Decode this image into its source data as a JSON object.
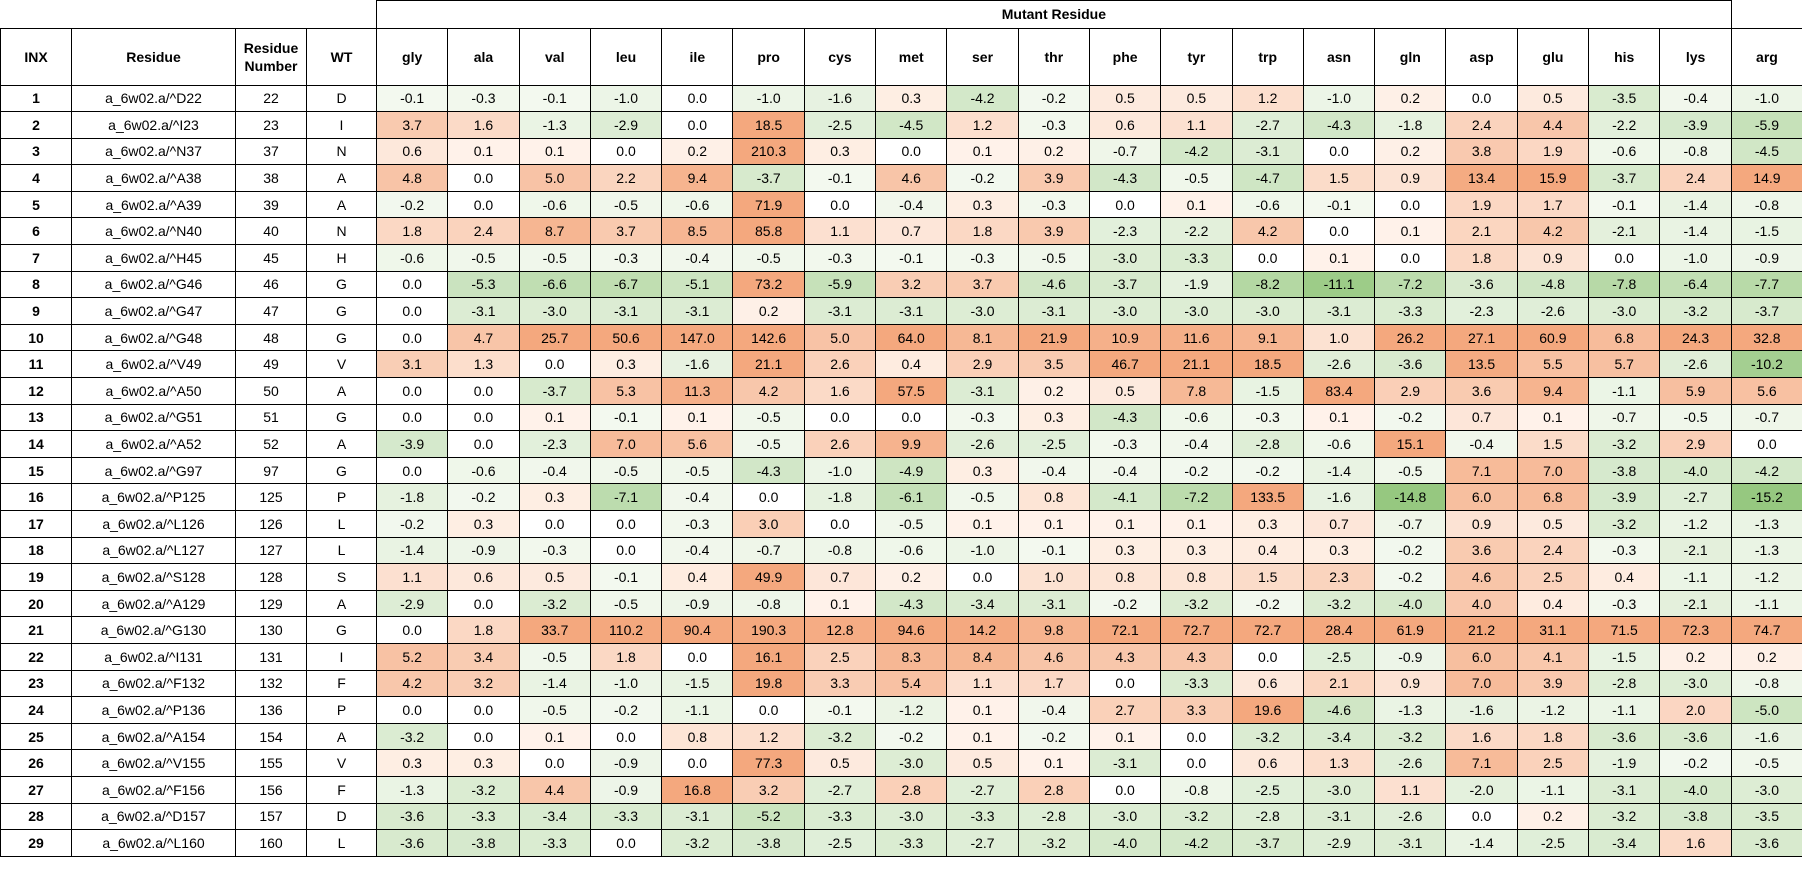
{
  "title": "Mutant Residue",
  "headers": [
    "INX",
    "Residue",
    "Residue Number",
    "WT",
    "gly",
    "ala",
    "val",
    "leu",
    "ile",
    "pro",
    "cys",
    "met",
    "ser",
    "thr",
    "phe",
    "tyr",
    "trp",
    "asn",
    "gln",
    "asp",
    "glu",
    "his",
    "lys",
    "arg"
  ],
  "colors": {
    "positive": "#f4a77d",
    "negative": "#8fc77a",
    "neutral": "#f4f9f0"
  },
  "rows": [
    [
      "1",
      "a_6w02.a/^D22",
      "22",
      "D",
      "-0.1",
      "-0.3",
      "-0.1",
      "-1.0",
      "0.0",
      "-1.0",
      "-1.6",
      "0.3",
      "-4.2",
      "-0.2",
      "0.5",
      "0.5",
      "1.2",
      "-1.0",
      "0.2",
      "0.0",
      "0.5",
      "-3.5",
      "-0.4",
      "-1.0"
    ],
    [
      "2",
      "a_6w02.a/^I23",
      "23",
      "I",
      "3.7",
      "1.6",
      "-1.3",
      "-2.9",
      "0.0",
      "18.5",
      "-2.5",
      "-4.5",
      "1.2",
      "-0.3",
      "0.6",
      "1.1",
      "-2.7",
      "-4.3",
      "-1.8",
      "2.4",
      "4.4",
      "-2.2",
      "-3.9",
      "-5.9"
    ],
    [
      "3",
      "a_6w02.a/^N37",
      "37",
      "N",
      "0.6",
      "0.1",
      "0.1",
      "0.0",
      "0.2",
      "210.3",
      "0.3",
      "0.0",
      "0.1",
      "0.2",
      "-0.7",
      "-4.2",
      "-3.1",
      "0.0",
      "0.2",
      "3.8",
      "1.9",
      "-0.6",
      "-0.8",
      "-4.5"
    ],
    [
      "4",
      "a_6w02.a/^A38",
      "38",
      "A",
      "4.8",
      "0.0",
      "5.0",
      "2.2",
      "9.4",
      "-3.7",
      "-0.1",
      "4.6",
      "-0.2",
      "3.9",
      "-4.3",
      "-0.5",
      "-4.7",
      "1.5",
      "0.9",
      "13.4",
      "15.9",
      "-3.7",
      "2.4",
      "14.9"
    ],
    [
      "5",
      "a_6w02.a/^A39",
      "39",
      "A",
      "-0.2",
      "0.0",
      "-0.6",
      "-0.5",
      "-0.6",
      "71.9",
      "0.0",
      "-0.4",
      "0.3",
      "-0.3",
      "0.0",
      "0.1",
      "-0.6",
      "-0.1",
      "0.0",
      "1.9",
      "1.7",
      "-0.1",
      "-1.4",
      "-0.8"
    ],
    [
      "6",
      "a_6w02.a/^N40",
      "40",
      "N",
      "1.8",
      "2.4",
      "8.7",
      "3.7",
      "8.5",
      "85.8",
      "1.1",
      "0.7",
      "1.8",
      "3.9",
      "-2.3",
      "-2.2",
      "4.2",
      "0.0",
      "0.1",
      "2.1",
      "4.2",
      "-2.1",
      "-1.4",
      "-1.5"
    ],
    [
      "7",
      "a_6w02.a/^H45",
      "45",
      "H",
      "-0.6",
      "-0.5",
      "-0.5",
      "-0.3",
      "-0.4",
      "-0.5",
      "-0.3",
      "-0.1",
      "-0.3",
      "-0.5",
      "-3.0",
      "-3.3",
      "0.0",
      "0.1",
      "0.0",
      "1.8",
      "0.9",
      "0.0",
      "-1.0",
      "-0.9"
    ],
    [
      "8",
      "a_6w02.a/^G46",
      "46",
      "G",
      "0.0",
      "-5.3",
      "-6.6",
      "-6.7",
      "-5.1",
      "73.2",
      "-5.9",
      "3.2",
      "3.7",
      "-4.6",
      "-3.7",
      "-1.9",
      "-8.2",
      "-11.1",
      "-7.2",
      "-3.6",
      "-4.8",
      "-7.8",
      "-6.4",
      "-7.7"
    ],
    [
      "9",
      "a_6w02.a/^G47",
      "47",
      "G",
      "0.0",
      "-3.1",
      "-3.0",
      "-3.1",
      "-3.1",
      "0.2",
      "-3.1",
      "-3.1",
      "-3.0",
      "-3.1",
      "-3.0",
      "-3.0",
      "-3.0",
      "-3.1",
      "-3.3",
      "-2.3",
      "-2.6",
      "-3.0",
      "-3.2",
      "-3.7"
    ],
    [
      "10",
      "a_6w02.a/^G48",
      "48",
      "G",
      "0.0",
      "4.7",
      "25.7",
      "50.6",
      "147.0",
      "142.6",
      "5.0",
      "64.0",
      "8.1",
      "21.9",
      "10.9",
      "11.6",
      "9.1",
      "1.0",
      "26.2",
      "27.1",
      "60.9",
      "6.8",
      "24.3",
      "32.8"
    ],
    [
      "11",
      "a_6w02.a/^V49",
      "49",
      "V",
      "3.1",
      "1.3",
      "0.0",
      "0.3",
      "-1.6",
      "21.1",
      "2.6",
      "0.4",
      "2.9",
      "3.5",
      "46.7",
      "21.1",
      "18.5",
      "-2.6",
      "-3.6",
      "13.5",
      "5.5",
      "5.7",
      "-2.6",
      "-10.2"
    ],
    [
      "12",
      "a_6w02.a/^A50",
      "50",
      "A",
      "0.0",
      "0.0",
      "-3.7",
      "5.3",
      "11.3",
      "4.2",
      "1.6",
      "57.5",
      "-3.1",
      "0.2",
      "0.5",
      "7.8",
      "-1.5",
      "83.4",
      "2.9",
      "3.6",
      "9.4",
      "-1.1",
      "5.9",
      "5.6"
    ],
    [
      "13",
      "a_6w02.a/^G51",
      "51",
      "G",
      "0.0",
      "0.0",
      "0.1",
      "-0.1",
      "0.1",
      "-0.5",
      "0.0",
      "0.0",
      "-0.3",
      "0.3",
      "-4.3",
      "-0.6",
      "-0.3",
      "0.1",
      "-0.2",
      "0.7",
      "0.1",
      "-0.7",
      "-0.5",
      "-0.7"
    ],
    [
      "14",
      "a_6w02.a/^A52",
      "52",
      "A",
      "-3.9",
      "0.0",
      "-2.3",
      "7.0",
      "5.6",
      "-0.5",
      "2.6",
      "9.9",
      "-2.6",
      "-2.5",
      "-0.3",
      "-0.4",
      "-2.8",
      "-0.6",
      "15.1",
      "-0.4",
      "1.5",
      "-3.2",
      "2.9",
      "0.0"
    ],
    [
      "15",
      "a_6w02.a/^G97",
      "97",
      "G",
      "0.0",
      "-0.6",
      "-0.4",
      "-0.5",
      "-0.5",
      "-4.3",
      "-1.0",
      "-4.9",
      "0.3",
      "-0.4",
      "-0.4",
      "-0.2",
      "-0.2",
      "-1.4",
      "-0.5",
      "7.1",
      "7.0",
      "-3.8",
      "-4.0",
      "-4.2"
    ],
    [
      "16",
      "a_6w02.a/^P125",
      "125",
      "P",
      "-1.8",
      "-0.2",
      "0.3",
      "-7.1",
      "-0.4",
      "0.0",
      "-1.8",
      "-6.1",
      "-0.5",
      "0.8",
      "-4.1",
      "-7.2",
      "133.5",
      "-1.6",
      "-14.8",
      "6.0",
      "6.8",
      "-3.9",
      "-2.7",
      "-15.2"
    ],
    [
      "17",
      "a_6w02.a/^L126",
      "126",
      "L",
      "-0.2",
      "0.3",
      "0.0",
      "0.0",
      "-0.3",
      "3.0",
      "0.0",
      "-0.5",
      "0.1",
      "0.1",
      "0.1",
      "0.1",
      "0.3",
      "0.7",
      "-0.7",
      "0.9",
      "0.5",
      "-3.2",
      "-1.2",
      "-1.3"
    ],
    [
      "18",
      "a_6w02.a/^L127",
      "127",
      "L",
      "-1.4",
      "-0.9",
      "-0.3",
      "0.0",
      "-0.4",
      "-0.7",
      "-0.8",
      "-0.6",
      "-1.0",
      "-0.1",
      "0.3",
      "0.3",
      "0.4",
      "0.3",
      "-0.2",
      "3.6",
      "2.4",
      "-0.3",
      "-2.1",
      "-1.3"
    ],
    [
      "19",
      "a_6w02.a/^S128",
      "128",
      "S",
      "1.1",
      "0.6",
      "0.5",
      "-0.1",
      "0.4",
      "49.9",
      "0.7",
      "0.2",
      "0.0",
      "1.0",
      "0.8",
      "0.8",
      "1.5",
      "2.3",
      "-0.2",
      "4.6",
      "2.5",
      "0.4",
      "-1.1",
      "-1.2"
    ],
    [
      "20",
      "a_6w02.a/^A129",
      "129",
      "A",
      "-2.9",
      "0.0",
      "-3.2",
      "-0.5",
      "-0.9",
      "-0.8",
      "0.1",
      "-4.3",
      "-3.4",
      "-3.1",
      "-0.2",
      "-3.2",
      "-0.2",
      "-3.2",
      "-4.0",
      "4.0",
      "0.4",
      "-0.3",
      "-2.1",
      "-1.1"
    ],
    [
      "21",
      "a_6w02.a/^G130",
      "130",
      "G",
      "0.0",
      "1.8",
      "33.7",
      "110.2",
      "90.4",
      "190.3",
      "12.8",
      "94.6",
      "14.2",
      "9.8",
      "72.1",
      "72.7",
      "72.7",
      "28.4",
      "61.9",
      "21.2",
      "31.1",
      "71.5",
      "72.3",
      "74.7"
    ],
    [
      "22",
      "a_6w02.a/^I131",
      "131",
      "I",
      "5.2",
      "3.4",
      "-0.5",
      "1.8",
      "0.0",
      "16.1",
      "2.5",
      "8.3",
      "8.4",
      "4.6",
      "4.3",
      "4.3",
      "0.0",
      "-2.5",
      "-0.9",
      "6.0",
      "4.1",
      "-1.5",
      "0.2",
      "0.2"
    ],
    [
      "23",
      "a_6w02.a/^F132",
      "132",
      "F",
      "4.2",
      "3.2",
      "-1.4",
      "-1.0",
      "-1.5",
      "19.8",
      "3.3",
      "5.4",
      "1.1",
      "1.7",
      "0.0",
      "-3.3",
      "0.6",
      "2.1",
      "0.9",
      "7.0",
      "3.9",
      "-2.8",
      "-3.0",
      "-0.8"
    ],
    [
      "24",
      "a_6w02.a/^P136",
      "136",
      "P",
      "0.0",
      "0.0",
      "-0.5",
      "-0.2",
      "-1.1",
      "0.0",
      "-0.1",
      "-1.2",
      "0.1",
      "-0.4",
      "2.7",
      "3.3",
      "19.6",
      "-4.6",
      "-1.3",
      "-1.6",
      "-1.2",
      "-1.1",
      "2.0",
      "-5.0"
    ],
    [
      "25",
      "a_6w02.a/^A154",
      "154",
      "A",
      "-3.2",
      "0.0",
      "0.1",
      "0.0",
      "0.8",
      "1.2",
      "-3.2",
      "-0.2",
      "0.1",
      "-0.2",
      "0.1",
      "0.0",
      "-3.2",
      "-3.4",
      "-3.2",
      "1.6",
      "1.8",
      "-3.6",
      "-3.6",
      "-1.6"
    ],
    [
      "26",
      "a_6w02.a/^V155",
      "155",
      "V",
      "0.3",
      "0.3",
      "0.0",
      "-0.9",
      "0.0",
      "77.3",
      "0.5",
      "-3.0",
      "0.5",
      "0.1",
      "-3.1",
      "0.0",
      "0.6",
      "1.3",
      "-2.6",
      "7.1",
      "2.5",
      "-1.9",
      "-0.2",
      "-0.5"
    ],
    [
      "27",
      "a_6w02.a/^F156",
      "156",
      "F",
      "-1.3",
      "-3.2",
      "4.4",
      "-0.9",
      "16.8",
      "3.2",
      "-2.7",
      "2.8",
      "-2.7",
      "2.8",
      "0.0",
      "-0.8",
      "-2.5",
      "-3.0",
      "1.1",
      "-2.0",
      "-1.1",
      "-3.1",
      "-4.0",
      "-3.0"
    ],
    [
      "28",
      "a_6w02.a/^D157",
      "157",
      "D",
      "-3.6",
      "-3.3",
      "-3.4",
      "-3.3",
      "-3.1",
      "-5.2",
      "-3.3",
      "-3.0",
      "-3.3",
      "-2.8",
      "-3.0",
      "-3.2",
      "-2.8",
      "-3.1",
      "-2.6",
      "0.0",
      "0.2",
      "-3.2",
      "-3.8",
      "-3.5"
    ],
    [
      "29",
      "a_6w02.a/^L160",
      "160",
      "L",
      "-3.6",
      "-3.8",
      "-3.3",
      "0.0",
      "-3.2",
      "-3.8",
      "-2.5",
      "-3.3",
      "-2.7",
      "-3.2",
      "-4.0",
      "-4.2",
      "-3.7",
      "-2.9",
      "-3.1",
      "-1.4",
      "-2.5",
      "-3.4",
      "1.6",
      "-3.6"
    ]
  ]
}
